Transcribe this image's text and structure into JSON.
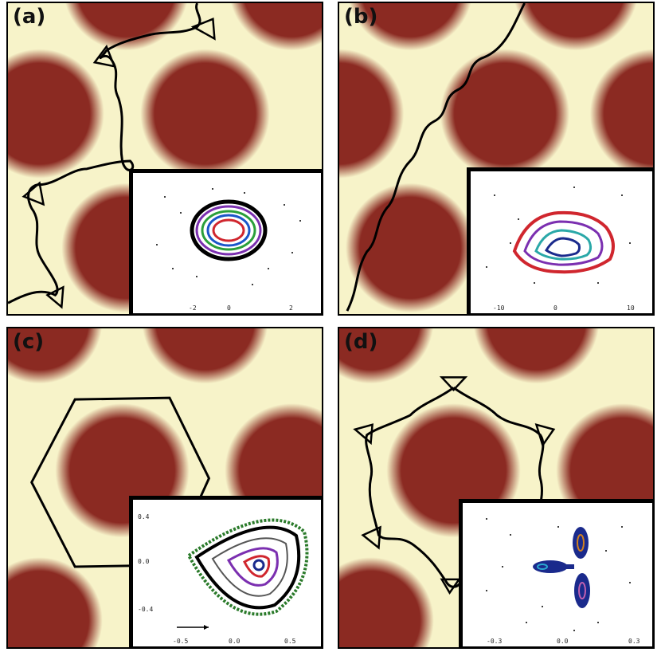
{
  "panels": [
    {
      "label": "(a)"
    },
    {
      "label": "(b)"
    },
    {
      "label": "(c)"
    },
    {
      "label": "(d)"
    }
  ],
  "colors": {
    "disk": "#8b2a22",
    "background": "#f7f3c9",
    "trajectory": "#000000"
  }
}
